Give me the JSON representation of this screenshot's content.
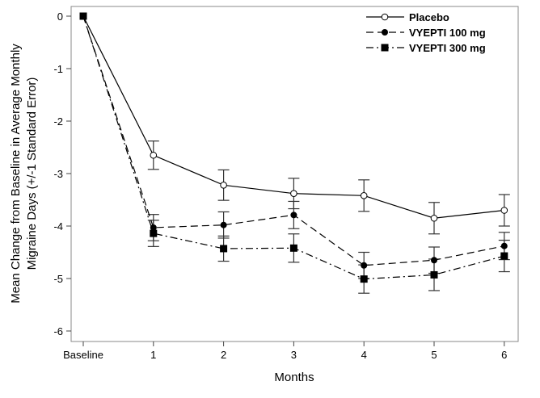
{
  "chart_data": {
    "type": "line",
    "title": "",
    "xlabel": "Months",
    "ylabel_lines": [
      "Mean Change from Baseline in Average Monthly",
      "Migraine Days (+/-1 Standard Error)"
    ],
    "categories": [
      "Baseline",
      "1",
      "2",
      "3",
      "4",
      "5",
      "6"
    ],
    "ylim": [
      -6,
      0
    ],
    "yticks": [
      "0",
      "-1",
      "-2",
      "-3",
      "-4",
      "-5",
      "-6"
    ],
    "grid": false,
    "legend_position": "top-right",
    "series": [
      {
        "name": "Placebo",
        "marker": "open-circle",
        "dash": "solid",
        "values": [
          0,
          -2.65,
          -3.22,
          -3.38,
          -3.42,
          -3.85,
          -3.7
        ],
        "error": [
          0,
          0.27,
          0.29,
          0.29,
          0.3,
          0.3,
          0.3
        ]
      },
      {
        "name": "VYEPTI 100 mg",
        "marker": "filled-circle",
        "dash": "dashed",
        "values": [
          0,
          -4.03,
          -3.98,
          -3.79,
          -4.75,
          -4.65,
          -4.38
        ],
        "error": [
          0,
          0.25,
          0.25,
          0.26,
          0.25,
          0.25,
          0.26
        ]
      },
      {
        "name": "VYEPTI 300 mg",
        "marker": "filled-square",
        "dash": "dash-dot",
        "values": [
          0,
          -4.14,
          -4.43,
          -4.42,
          -5.01,
          -4.93,
          -4.57
        ],
        "error": [
          0,
          0.25,
          0.24,
          0.27,
          0.27,
          0.3,
          0.3
        ]
      }
    ]
  }
}
